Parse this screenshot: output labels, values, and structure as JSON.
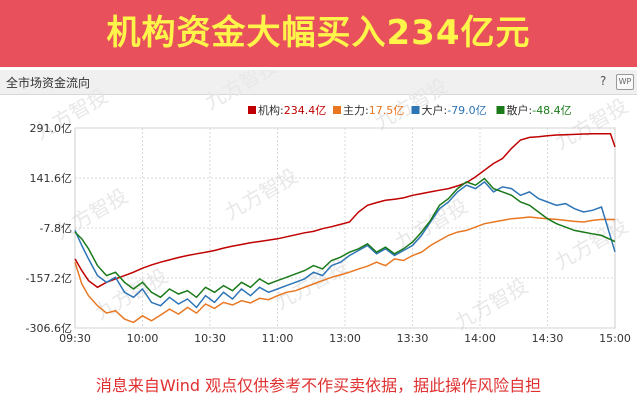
{
  "banner": {
    "title": "机构资金大幅买入234亿元"
  },
  "panel": {
    "title": "全市场资金流向",
    "help_label": "?",
    "wp_label": "WP"
  },
  "watermark": "九方智投",
  "disclaimer": "消息来自Wind 观点仅供参考不作买卖依据，据此操作风险自担",
  "colors": {
    "banner": "#e8505b",
    "banner_text": "#fff44a",
    "jigou": "#c00000",
    "zhuli": "#e87722",
    "dahu": "#2e75b6",
    "sanhu": "#1a7a1a"
  },
  "chart_data": {
    "type": "line",
    "title": "",
    "xlabel": "",
    "ylabel": "",
    "y_ticks": [
      291.0,
      141.6,
      -7.8,
      -157.2,
      -306.6
    ],
    "y_tick_labels": [
      "291.0亿",
      "141.6亿",
      "-7.8亿",
      "-157.2亿",
      "-306.6亿"
    ],
    "ylim": [
      -306.6,
      291.0
    ],
    "x_ticks": [
      "09:30",
      "10:00",
      "10:30",
      "11:00",
      "13:00",
      "13:30",
      "14:00",
      "14:30",
      "15:00"
    ],
    "grid": true,
    "legend_position": "top-right",
    "legend": [
      {
        "label": "机构",
        "value": "234.4亿"
      },
      {
        "label": "主力",
        "value": "17.5亿"
      },
      {
        "label": "大户",
        "value": "-79.0亿"
      },
      {
        "label": "散户",
        "value": "-48.4亿"
      }
    ],
    "series": [
      {
        "name": "机构",
        "color": "#c00000",
        "points": [
          [
            0,
            -100
          ],
          [
            3,
            -135
          ],
          [
            6,
            -165
          ],
          [
            10,
            -185
          ],
          [
            14,
            -170
          ],
          [
            18,
            -160
          ],
          [
            22,
            -150
          ],
          [
            26,
            -140
          ],
          [
            30,
            -128
          ],
          [
            34,
            -118
          ],
          [
            38,
            -110
          ],
          [
            42,
            -103
          ],
          [
            46,
            -96
          ],
          [
            50,
            -90
          ],
          [
            54,
            -85
          ],
          [
            58,
            -80
          ],
          [
            62,
            -75
          ],
          [
            66,
            -68
          ],
          [
            70,
            -62
          ],
          [
            74,
            -57
          ],
          [
            78,
            -52
          ],
          [
            82,
            -48
          ],
          [
            86,
            -44
          ],
          [
            90,
            -40
          ],
          [
            94,
            -34
          ],
          [
            98,
            -28
          ],
          [
            102,
            -22
          ],
          [
            106,
            -18
          ],
          [
            110,
            -10
          ],
          [
            114,
            -4
          ],
          [
            118,
            3
          ],
          [
            122,
            10
          ],
          [
            126,
            40
          ],
          [
            130,
            60
          ],
          [
            134,
            68
          ],
          [
            138,
            75
          ],
          [
            142,
            78
          ],
          [
            146,
            82
          ],
          [
            150,
            90
          ],
          [
            154,
            95
          ],
          [
            158,
            100
          ],
          [
            162,
            105
          ],
          [
            166,
            110
          ],
          [
            170,
            118
          ],
          [
            174,
            128
          ],
          [
            178,
            145
          ],
          [
            182,
            165
          ],
          [
            186,
            185
          ],
          [
            190,
            200
          ],
          [
            194,
            230
          ],
          [
            198,
            255
          ],
          [
            202,
            263
          ],
          [
            206,
            265
          ],
          [
            210,
            268
          ],
          [
            214,
            270
          ],
          [
            218,
            271
          ],
          [
            222,
            272
          ],
          [
            226,
            273
          ],
          [
            230,
            274
          ],
          [
            234,
            274
          ],
          [
            238,
            274
          ],
          [
            240,
            234.4
          ]
        ]
      },
      {
        "name": "主力",
        "color": "#e87722",
        "points": [
          [
            0,
            -110
          ],
          [
            3,
            -175
          ],
          [
            6,
            -210
          ],
          [
            10,
            -240
          ],
          [
            14,
            -262
          ],
          [
            18,
            -255
          ],
          [
            22,
            -280
          ],
          [
            26,
            -290
          ],
          [
            30,
            -270
          ],
          [
            34,
            -285
          ],
          [
            38,
            -268
          ],
          [
            42,
            -250
          ],
          [
            46,
            -265
          ],
          [
            50,
            -245
          ],
          [
            54,
            -262
          ],
          [
            58,
            -235
          ],
          [
            62,
            -248
          ],
          [
            66,
            -230
          ],
          [
            70,
            -238
          ],
          [
            74,
            -225
          ],
          [
            78,
            -232
          ],
          [
            82,
            -218
          ],
          [
            86,
            -222
          ],
          [
            90,
            -210
          ],
          [
            94,
            -200
          ],
          [
            98,
            -195
          ],
          [
            102,
            -185
          ],
          [
            106,
            -175
          ],
          [
            110,
            -165
          ],
          [
            114,
            -155
          ],
          [
            118,
            -148
          ],
          [
            122,
            -140
          ],
          [
            126,
            -130
          ],
          [
            130,
            -122
          ],
          [
            134,
            -110
          ],
          [
            138,
            -120
          ],
          [
            142,
            -100
          ],
          [
            146,
            -105
          ],
          [
            150,
            -90
          ],
          [
            154,
            -80
          ],
          [
            158,
            -60
          ],
          [
            162,
            -45
          ],
          [
            166,
            -30
          ],
          [
            170,
            -20
          ],
          [
            174,
            -15
          ],
          [
            178,
            -5
          ],
          [
            182,
            5
          ],
          [
            186,
            10
          ],
          [
            190,
            15
          ],
          [
            194,
            20
          ],
          [
            198,
            22
          ],
          [
            202,
            25
          ],
          [
            206,
            22
          ],
          [
            210,
            20
          ],
          [
            214,
            18
          ],
          [
            218,
            15
          ],
          [
            222,
            12
          ],
          [
            226,
            10
          ],
          [
            230,
            15
          ],
          [
            234,
            18
          ],
          [
            240,
            17.5
          ]
        ]
      },
      {
        "name": "大户",
        "color": "#2e75b6",
        "points": [
          [
            0,
            -15
          ],
          [
            3,
            -60
          ],
          [
            6,
            -100
          ],
          [
            10,
            -150
          ],
          [
            14,
            -170
          ],
          [
            18,
            -155
          ],
          [
            22,
            -200
          ],
          [
            26,
            -215
          ],
          [
            30,
            -190
          ],
          [
            34,
            -230
          ],
          [
            38,
            -240
          ],
          [
            42,
            -215
          ],
          [
            46,
            -235
          ],
          [
            50,
            -220
          ],
          [
            54,
            -245
          ],
          [
            58,
            -210
          ],
          [
            62,
            -230
          ],
          [
            66,
            -200
          ],
          [
            70,
            -220
          ],
          [
            74,
            -190
          ],
          [
            78,
            -210
          ],
          [
            82,
            -185
          ],
          [
            86,
            -200
          ],
          [
            90,
            -190
          ],
          [
            94,
            -180
          ],
          [
            98,
            -170
          ],
          [
            102,
            -160
          ],
          [
            106,
            -140
          ],
          [
            110,
            -150
          ],
          [
            114,
            -120
          ],
          [
            118,
            -110
          ],
          [
            122,
            -90
          ],
          [
            126,
            -75
          ],
          [
            130,
            -60
          ],
          [
            134,
            -85
          ],
          [
            138,
            -70
          ],
          [
            142,
            -90
          ],
          [
            146,
            -75
          ],
          [
            150,
            -60
          ],
          [
            154,
            -30
          ],
          [
            158,
            10
          ],
          [
            162,
            50
          ],
          [
            166,
            70
          ],
          [
            170,
            100
          ],
          [
            174,
            120
          ],
          [
            178,
            110
          ],
          [
            182,
            130
          ],
          [
            186,
            100
          ],
          [
            190,
            115
          ],
          [
            194,
            110
          ],
          [
            198,
            90
          ],
          [
            202,
            100
          ],
          [
            206,
            80
          ],
          [
            210,
            70
          ],
          [
            214,
            60
          ],
          [
            218,
            65
          ],
          [
            222,
            50
          ],
          [
            226,
            40
          ],
          [
            230,
            45
          ],
          [
            234,
            55
          ],
          [
            240,
            -79.0
          ]
        ]
      },
      {
        "name": "散户",
        "color": "#1a7a1a",
        "points": [
          [
            0,
            -20
          ],
          [
            3,
            -40
          ],
          [
            6,
            -70
          ],
          [
            10,
            -120
          ],
          [
            14,
            -150
          ],
          [
            18,
            -140
          ],
          [
            22,
            -170
          ],
          [
            26,
            -190
          ],
          [
            30,
            -170
          ],
          [
            34,
            -200
          ],
          [
            38,
            -215
          ],
          [
            42,
            -190
          ],
          [
            46,
            -205
          ],
          [
            50,
            -195
          ],
          [
            54,
            -215
          ],
          [
            58,
            -185
          ],
          [
            62,
            -200
          ],
          [
            66,
            -180
          ],
          [
            70,
            -195
          ],
          [
            74,
            -170
          ],
          [
            78,
            -185
          ],
          [
            82,
            -160
          ],
          [
            86,
            -175
          ],
          [
            90,
            -165
          ],
          [
            94,
            -155
          ],
          [
            98,
            -145
          ],
          [
            102,
            -135
          ],
          [
            106,
            -120
          ],
          [
            110,
            -130
          ],
          [
            114,
            -105
          ],
          [
            118,
            -95
          ],
          [
            122,
            -80
          ],
          [
            126,
            -70
          ],
          [
            130,
            -55
          ],
          [
            134,
            -80
          ],
          [
            138,
            -65
          ],
          [
            142,
            -85
          ],
          [
            146,
            -70
          ],
          [
            150,
            -50
          ],
          [
            154,
            -20
          ],
          [
            158,
            15
          ],
          [
            162,
            60
          ],
          [
            166,
            80
          ],
          [
            170,
            110
          ],
          [
            174,
            130
          ],
          [
            178,
            120
          ],
          [
            182,
            140
          ],
          [
            186,
            110
          ],
          [
            190,
            100
          ],
          [
            194,
            90
          ],
          [
            198,
            70
          ],
          [
            202,
            60
          ],
          [
            206,
            40
          ],
          [
            210,
            20
          ],
          [
            214,
            5
          ],
          [
            218,
            -5
          ],
          [
            222,
            -15
          ],
          [
            226,
            -20
          ],
          [
            230,
            -25
          ],
          [
            234,
            -30
          ],
          [
            240,
            -48.4
          ]
        ]
      }
    ]
  }
}
